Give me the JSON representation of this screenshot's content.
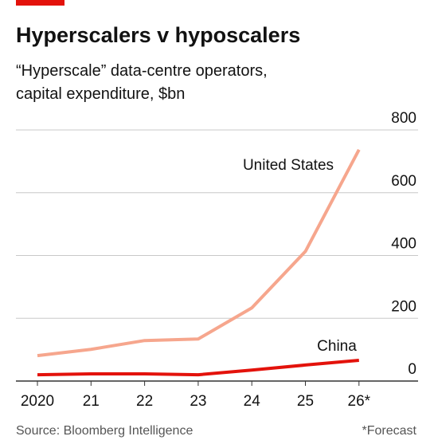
{
  "chart_data": {
    "type": "line",
    "title": "Hyperscalers v hyposcalers",
    "subtitle": [
      "“Hyperscale” data-centre operators,",
      "capital expenditure, $bn"
    ],
    "categories": [
      "2020",
      "21",
      "22",
      "23",
      "24",
      "25",
      "26*"
    ],
    "series": [
      {
        "name": "United States",
        "color": "#f6a68d",
        "values": [
          81,
          101,
          129,
          134,
          233,
          413,
          737
        ]
      },
      {
        "name": "China",
        "color": "#e3120b",
        "values": [
          20,
          23,
          23,
          20,
          35,
          51,
          66
        ]
      }
    ],
    "ylim": [
      0,
      800
    ],
    "yticks": [
      0,
      200,
      400,
      600,
      800
    ],
    "grid": true,
    "source": "Source: Bloomberg Intelligence",
    "footnote": "*Forecast"
  }
}
